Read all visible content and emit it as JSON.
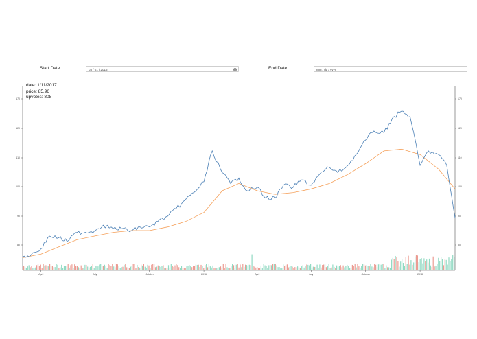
{
  "controls": {
    "start_label": "Start Date",
    "start_value": "03 / 01 / 2016",
    "end_label": "End Date",
    "end_placeholder": "mm / dd / yyyy"
  },
  "tooltip": {
    "date": "date: 1/11/2017",
    "price": "price: 85.96",
    "upvotes": "upvotes: 808"
  },
  "colors": {
    "price_line": "#4a7fb5",
    "moving_average": "#f5a05a",
    "volume_up": "#7fd3b8",
    "volume_down": "#e88b80"
  },
  "chart_data": {
    "type": "line",
    "x_start": "2016-03-01",
    "x_end": "2018-03-01",
    "x_tick_labels": [
      "April",
      "July",
      "October",
      "2016",
      "April",
      "July",
      "October",
      "2018"
    ],
    "x_tick_dates": [
      "2016-04-01",
      "2016-07-01",
      "2016-10-01",
      "2017-01-01",
      "2017-04-01",
      "2017-07-01",
      "2017-10-01",
      "2018-01-01"
    ],
    "y_ticks": [
      80,
      90,
      100,
      110,
      120,
      170
    ],
    "y_tick_labels": [
      "80",
      "90",
      "100",
      "110",
      "120",
      "170"
    ],
    "ylim": [
      74,
      176
    ],
    "grid": false,
    "series": [
      {
        "kind": "price",
        "x": [
          "2016-03-01",
          "2016-03-15",
          "2016-04-01",
          "2016-04-15",
          "2016-05-01",
          "2016-05-15",
          "2016-06-01",
          "2016-06-15",
          "2016-07-01",
          "2016-07-15",
          "2016-08-01",
          "2016-08-15",
          "2016-09-01",
          "2016-09-15",
          "2016-10-01",
          "2016-10-15",
          "2016-11-01",
          "2016-11-15",
          "2016-12-01",
          "2016-12-15",
          "2017-01-01",
          "2017-01-15",
          "2017-02-01",
          "2017-02-15",
          "2017-03-01",
          "2017-03-15",
          "2017-04-01",
          "2017-04-15",
          "2017-05-01",
          "2017-05-15",
          "2017-06-01",
          "2017-06-15",
          "2017-07-01",
          "2017-07-15",
          "2017-08-01",
          "2017-08-15",
          "2017-09-01",
          "2017-09-15",
          "2017-10-01",
          "2017-10-15",
          "2017-11-01",
          "2017-11-15",
          "2017-12-01",
          "2017-12-15",
          "2018-01-01",
          "2018-01-15",
          "2018-02-01",
          "2018-02-15",
          "2018-03-01"
        ],
        "y": [
          81.5,
          82.5,
          86,
          93,
          92,
          90,
          95,
          95,
          96,
          99,
          97,
          97,
          96,
          98,
          98,
          101,
          104,
          108,
          113,
          117,
          123,
          140,
          128,
          122,
          125,
          118,
          120,
          114,
          114,
          121,
          120,
          124,
          121,
          127,
          131,
          128,
          132,
          138,
          146,
          151,
          150,
          158,
          162,
          159,
          132,
          140,
          138,
          132,
          103
        ]
      },
      {
        "kind": "moving_average",
        "x": [
          "2016-03-01",
          "2016-04-01",
          "2016-05-01",
          "2016-06-01",
          "2016-07-01",
          "2016-08-01",
          "2016-09-01",
          "2016-10-01",
          "2016-11-01",
          "2016-12-01",
          "2017-01-01",
          "2017-02-01",
          "2017-03-01",
          "2017-04-01",
          "2017-05-01",
          "2017-06-01",
          "2017-07-01",
          "2017-08-01",
          "2017-09-01",
          "2017-10-01",
          "2017-11-01",
          "2017-12-01",
          "2018-01-01",
          "2018-02-01",
          "2018-03-01"
        ],
        "y": [
          81,
          83,
          87,
          91,
          93,
          95,
          96,
          96,
          98,
          101,
          106,
          118,
          122,
          118,
          116,
          117,
          119,
          122,
          127,
          133,
          140,
          141,
          138,
          130,
          119
        ]
      }
    ],
    "volume_note": "secondary bars near bottom, scale not labeled"
  }
}
